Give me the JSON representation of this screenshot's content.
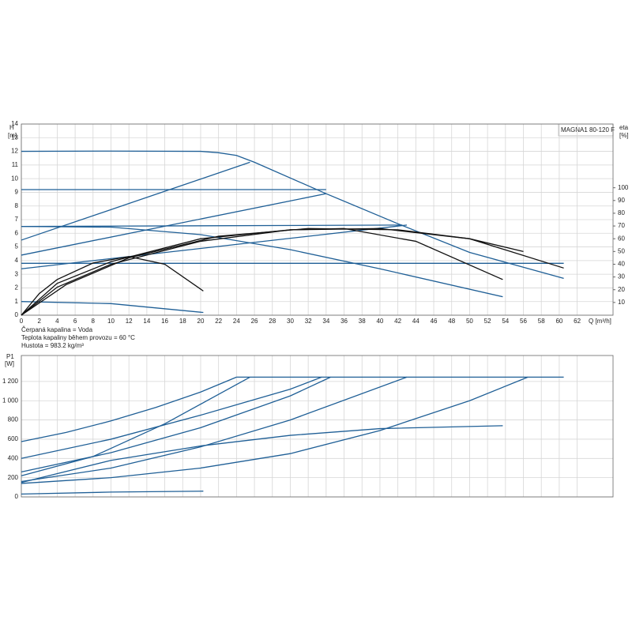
{
  "chart_data": [
    {
      "type": "line",
      "title": "MAGNA1 80-120 F",
      "y_label": "H",
      "y_unit": "[m]",
      "y2_label": "eta",
      "y2_unit": "[%]",
      "x_label": "Q [m³/h]",
      "annotations": [
        "Čerpaná kapalina = Voda",
        "Teplota kapaliny během provozu = 60 °C",
        "Hustota = 983.2 kg/m³"
      ],
      "xlim": [
        0,
        66
      ],
      "ylim": [
        0,
        14
      ],
      "y2lim": [
        0,
        150
      ],
      "grid": true,
      "xticks": [
        0,
        2,
        4,
        6,
        8,
        10,
        12,
        14,
        16,
        18,
        20,
        22,
        24,
        26,
        28,
        30,
        32,
        34,
        36,
        38,
        40,
        42,
        44,
        46,
        48,
        50,
        52,
        54,
        56,
        58,
        60,
        62
      ],
      "yticks": [
        0,
        1,
        2,
        3,
        4,
        5,
        6,
        7,
        8,
        9,
        10,
        11,
        12,
        13,
        14
      ],
      "y2ticks": [
        10,
        20,
        30,
        40,
        50,
        60,
        70,
        80,
        90,
        100
      ],
      "series": [
        {
          "color": "#1f5f96",
          "x": [
            0,
            10,
            20,
            22,
            24,
            26,
            34,
            42,
            50,
            60.5
          ],
          "values": [
            12,
            12.02,
            12,
            11.9,
            11.7,
            11.2,
            8.9,
            6.7,
            4.6,
            2.7
          ]
        },
        {
          "color": "#1f5f96",
          "x": [
            0,
            34
          ],
          "values": [
            9.2,
            9.2
          ]
        },
        {
          "color": "#1f5f96",
          "x": [
            0,
            42.5
          ],
          "values": [
            6.5,
            6.6
          ]
        },
        {
          "color": "#1f5f96",
          "x": [
            0,
            10,
            20,
            30,
            40,
            53.7
          ],
          "values": [
            6.5,
            6.45,
            5.9,
            4.8,
            3.4,
            1.35
          ]
        },
        {
          "color": "#1f5f96",
          "x": [
            0,
            60.5
          ],
          "values": [
            3.8,
            3.8
          ]
        },
        {
          "color": "#1f5f96",
          "x": [
            0,
            10,
            20.3
          ],
          "values": [
            1,
            0.85,
            0.2
          ]
        },
        {
          "color": "#1f5f96",
          "x": [
            0,
            25.5
          ],
          "values": [
            5.5,
            11.2
          ]
        },
        {
          "color": "#1f5f96",
          "x": [
            0,
            34
          ],
          "values": [
            4.4,
            8.9
          ]
        },
        {
          "color": "#1f5f96",
          "x": [
            0,
            43
          ],
          "values": [
            3.4,
            6.6
          ]
        },
        {
          "color": "#111111",
          "axis": "y2",
          "x": [
            0,
            2,
            4,
            8,
            12,
            16,
            20.3
          ],
          "values": [
            0,
            17,
            28,
            41,
            46,
            40,
            19
          ]
        },
        {
          "color": "#111111",
          "axis": "y2",
          "x": [
            0,
            4,
            10,
            20,
            30,
            36,
            44,
            53.7
          ],
          "values": [
            0,
            25,
            42,
            60,
            67,
            68,
            58,
            28
          ]
        },
        {
          "color": "#111111",
          "axis": "y2",
          "x": [
            0,
            4,
            10,
            20,
            30,
            40,
            50,
            60.5
          ],
          "values": [
            0,
            22,
            40,
            58,
            67,
            68,
            60,
            37
          ]
        },
        {
          "color": "#111111",
          "axis": "y2",
          "x": [
            0,
            5,
            12,
            22,
            32,
            42,
            50,
            56
          ],
          "values": [
            0,
            24,
            45,
            62,
            68,
            67,
            60,
            50
          ]
        }
      ]
    },
    {
      "type": "line",
      "y_label": "P1",
      "y_unit": "[W]",
      "xlim": [
        0,
        66
      ],
      "ylim": [
        0,
        1470
      ],
      "grid": true,
      "yticks": [
        0,
        200,
        400,
        600,
        800,
        {
          "value": 1000,
          "label": "1 000"
        },
        {
          "value": 1200,
          "label": "1 200"
        }
      ],
      "series": [
        {
          "color": "#1f5f96",
          "x": [
            0,
            5,
            10,
            15,
            20,
            24
          ],
          "values": [
            575,
            670,
            790,
            930,
            1090,
            1245
          ]
        },
        {
          "color": "#1f5f96",
          "x": [
            24,
            60.5
          ],
          "values": [
            1245,
            1245
          ]
        },
        {
          "color": "#1f5f96",
          "x": [
            0,
            10,
            20,
            30,
            33.5
          ],
          "values": [
            400,
            600,
            850,
            1120,
            1245
          ]
        },
        {
          "color": "#1f5f96",
          "x": [
            0,
            8,
            16,
            25.5
          ],
          "values": [
            220,
            420,
            760,
            1245
          ]
        },
        {
          "color": "#1f5f96",
          "x": [
            0,
            10,
            20,
            30,
            34.5
          ],
          "values": [
            260,
            460,
            720,
            1050,
            1245
          ]
        },
        {
          "color": "#1f5f96",
          "x": [
            0,
            10,
            20,
            30,
            43
          ],
          "values": [
            160,
            300,
            520,
            800,
            1245
          ]
        },
        {
          "color": "#1f5f96",
          "x": [
            0,
            10,
            20,
            30,
            40,
            50,
            56.5
          ],
          "values": [
            140,
            200,
            300,
            450,
            690,
            1000,
            1245
          ]
        },
        {
          "color": "#1f5f96",
          "x": [
            0,
            10,
            20,
            30,
            40,
            53.7
          ],
          "values": [
            150,
            380,
            530,
            640,
            710,
            740
          ]
        },
        {
          "color": "#1f5f96",
          "x": [
            0,
            10,
            20.3
          ],
          "values": [
            30,
            50,
            60
          ]
        }
      ]
    }
  ]
}
